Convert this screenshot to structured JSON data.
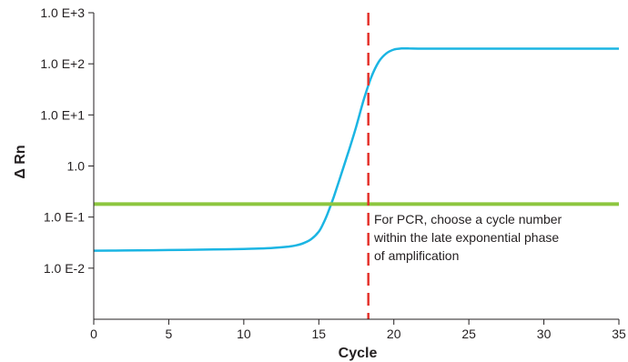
{
  "chart_data": {
    "type": "line",
    "xlabel": "Cycle",
    "ylabel": "Δ Rn",
    "xlim": [
      0,
      35
    ],
    "ylim": [
      0.001,
      1000
    ],
    "y_scale": "log",
    "x_ticks": [
      {
        "value": 0,
        "label": "0"
      },
      {
        "value": 5,
        "label": "5"
      },
      {
        "value": 10,
        "label": "10"
      },
      {
        "value": 15,
        "label": "15"
      },
      {
        "value": 20,
        "label": "20"
      },
      {
        "value": 25,
        "label": "25"
      },
      {
        "value": 30,
        "label": "30"
      },
      {
        "value": 35,
        "label": "35"
      }
    ],
    "y_ticks": [
      {
        "value": 0.01,
        "label": "1.0 E-2"
      },
      {
        "value": 0.1,
        "label": "1.0 E-1"
      },
      {
        "value": 1,
        "label": "1.0"
      },
      {
        "value": 10,
        "label": "1.0 E+1"
      },
      {
        "value": 100,
        "label": "1.0 E+2"
      },
      {
        "value": 1000,
        "label": "1.0 E+3"
      }
    ],
    "grid": false,
    "series": [
      {
        "color": "#1bb5e3",
        "x": [
          0,
          2,
          4,
          6,
          8,
          10,
          11,
          12,
          13,
          13.5,
          14,
          14.5,
          15,
          15.3,
          15.6,
          16,
          16.5,
          17,
          17.5,
          18,
          18.5,
          19,
          19.5,
          20,
          20.5,
          21,
          22,
          25,
          30,
          35
        ],
        "y": [
          0.022,
          0.0222,
          0.0225,
          0.0228,
          0.0232,
          0.0238,
          0.0242,
          0.025,
          0.0265,
          0.028,
          0.031,
          0.037,
          0.052,
          0.075,
          0.12,
          0.25,
          0.7,
          2.0,
          6.0,
          20,
          55,
          110,
          160,
          190,
          200,
          200,
          198,
          198,
          198,
          198
        ]
      }
    ],
    "threshold": {
      "value": 0.18,
      "color": "#8dc63f"
    },
    "cycle_marker": {
      "value": 18.3,
      "color": "#e4322b"
    },
    "annotation": [
      "For PCR, choose a cycle number",
      "within the late exponential phase",
      "of amplification"
    ]
  }
}
